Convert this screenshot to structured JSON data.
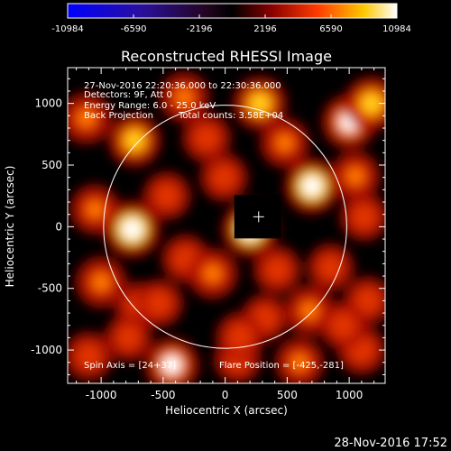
{
  "colorbar": {
    "ticks": [
      "-10984",
      "-6590",
      "-2196",
      "2196",
      "6590",
      "10984"
    ]
  },
  "chart_data": {
    "type": "heatmap",
    "title": "Reconstructed RHESSI Image",
    "xlabel": "Heliocentric X (arcsec)",
    "ylabel": "Heliocentric Y (arcsec)",
    "xlim": [
      -1270,
      1290
    ],
    "ylim": [
      -1270,
      1290
    ],
    "x_ticks": [
      "-1000",
      "-500",
      "0",
      "500",
      "1000"
    ],
    "y_ticks": [
      "-1000",
      "-500",
      "0",
      "500",
      "1000"
    ],
    "x_tick_values": [
      -1000,
      -500,
      0,
      500,
      1000
    ],
    "y_tick_values": [
      -1000,
      -500,
      0,
      500,
      1000
    ],
    "color_range": [
      -10984,
      10984
    ],
    "colormap": "hot-on-blue",
    "solar_disk_radius_arcsec": 980,
    "flare_position": [
      -425,
      -281
    ],
    "center_marker": [
      270,
      110
    ],
    "annotations": {
      "time_range": "27-Nov-2016 22:20:36.000 to 22:30:36.000",
      "detectors": "Detectors: 9F, Att 0",
      "energy": "Energy Range: 6.0 - 25.0 keV",
      "method": "Back Projection",
      "counts": "Total counts: 3.58E+04",
      "spin_axis": "Spin Axis = [24+37]",
      "flare_position_label": "Flare Position = [-425,-281]"
    },
    "bright_sources": [
      {
        "x": -750,
        "y": -20,
        "value": 10984
      },
      {
        "x": -730,
        "y": 700,
        "value": 8500
      },
      {
        "x": -1120,
        "y": 880,
        "value": 7500
      },
      {
        "x": -1050,
        "y": 140,
        "value": 6500
      },
      {
        "x": -330,
        "y": 1050,
        "value": 6800
      },
      {
        "x": -150,
        "y": 720,
        "value": 6000
      },
      {
        "x": 280,
        "y": 1000,
        "value": 9000
      },
      {
        "x": 480,
        "y": 680,
        "value": 6500
      },
      {
        "x": 700,
        "y": 330,
        "value": 10000
      },
      {
        "x": 1000,
        "y": 850,
        "value": 9500
      },
      {
        "x": 1180,
        "y": 1000,
        "value": 9000
      },
      {
        "x": 1050,
        "y": 410,
        "value": 6500
      },
      {
        "x": 1120,
        "y": 80,
        "value": 5500
      },
      {
        "x": -10,
        "y": 400,
        "value": 5500
      },
      {
        "x": 200,
        "y": -20,
        "value": 10500
      },
      {
        "x": -470,
        "y": 250,
        "value": 5500
      },
      {
        "x": -1000,
        "y": -450,
        "value": 7500
      },
      {
        "x": -700,
        "y": -640,
        "value": 5000
      },
      {
        "x": -320,
        "y": -260,
        "value": 5500
      },
      {
        "x": -100,
        "y": -380,
        "value": 7000
      },
      {
        "x": 420,
        "y": -350,
        "value": 5500
      },
      {
        "x": 850,
        "y": -330,
        "value": 5000
      },
      {
        "x": 1150,
        "y": -600,
        "value": 5500
      },
      {
        "x": 680,
        "y": -680,
        "value": 7000
      },
      {
        "x": 320,
        "y": -740,
        "value": 5000
      },
      {
        "x": -530,
        "y": -620,
        "value": 5200
      },
      {
        "x": -1100,
        "y": -1050,
        "value": 6000
      },
      {
        "x": -430,
        "y": -1120,
        "value": 9500
      },
      {
        "x": 100,
        "y": -1080,
        "value": 5000
      },
      {
        "x": 600,
        "y": -1100,
        "value": 6500
      },
      {
        "x": 1100,
        "y": -1000,
        "value": 6000
      },
      {
        "x": 950,
        "y": -800,
        "value": 5500
      },
      {
        "x": 120,
        "y": -890,
        "value": 5500
      },
      {
        "x": -780,
        "y": -900,
        "value": 5000
      }
    ]
  },
  "footer": {
    "timestamp": "28-Nov-2016 17:52"
  }
}
